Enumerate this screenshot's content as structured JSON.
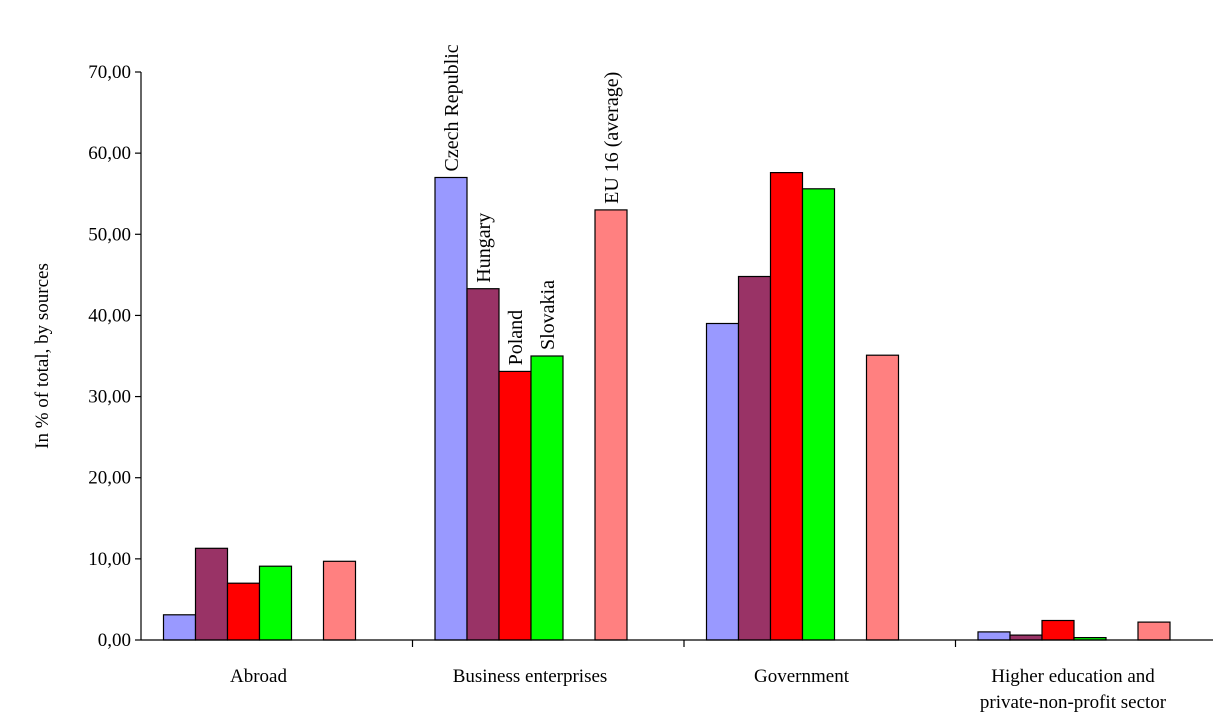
{
  "chart_data": {
    "type": "bar",
    "title": "",
    "xlabel": "",
    "ylabel": "In % of total, by sources",
    "ylim": [
      0,
      70
    ],
    "yticks": [
      "0,00",
      "10,00",
      "20,00",
      "30,00",
      "40,00",
      "50,00",
      "60,00",
      "70,00"
    ],
    "grid": false,
    "legend": "none (series named by rotated labels above the Business enterprises bars)",
    "categories": [
      [
        "Abroad"
      ],
      [
        "Business enterprises"
      ],
      [
        "Government"
      ],
      [
        "Higher education and",
        "private-non-profit sector"
      ]
    ],
    "series": [
      {
        "name": "Czech Republic",
        "color": "#9999ff",
        "values": [
          3.1,
          57.0,
          39.0,
          1.0
        ]
      },
      {
        "name": "Hungary",
        "color": "#993366",
        "values": [
          11.3,
          43.3,
          44.8,
          0.6
        ]
      },
      {
        "name": "Poland",
        "color": "#ff0000",
        "values": [
          7.0,
          33.1,
          57.6,
          2.4
        ]
      },
      {
        "name": "Slovakia",
        "color": "#00ff00",
        "values": [
          9.1,
          35.0,
          55.6,
          0.3
        ]
      },
      {
        "name": "EU 16 (average)",
        "color": "#ff8080",
        "values": [
          9.7,
          53.0,
          35.1,
          2.2
        ]
      }
    ]
  }
}
